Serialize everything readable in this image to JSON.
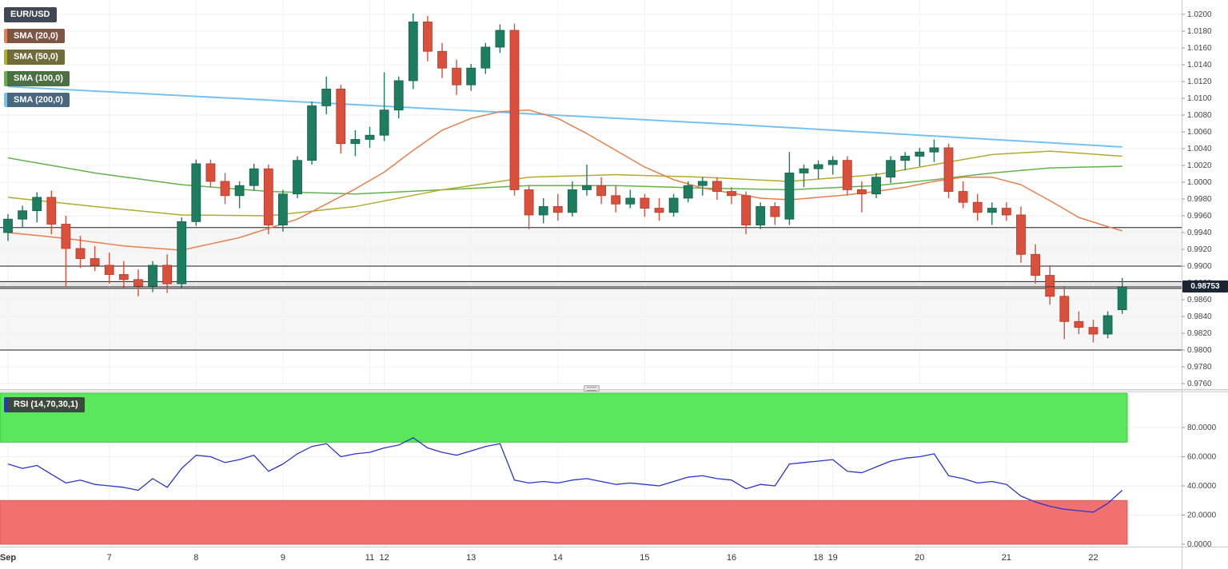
{
  "chart_data": {
    "type": "candlestick",
    "symbol": "EUR/USD",
    "legend": {
      "symbol": "EUR/USD",
      "sma20": "SMA (20,0)",
      "sma50": "SMA (50,0)",
      "sma100": "SMA (100,0)",
      "sma200": "SMA (200,0)"
    },
    "x_labels": [
      {
        "label": "Sep",
        "i": 0
      },
      {
        "label": "7",
        "i": 7
      },
      {
        "label": "8",
        "i": 13
      },
      {
        "label": "9",
        "i": 19
      },
      {
        "label": "11",
        "i": 25
      },
      {
        "label": "12",
        "i": 26
      },
      {
        "label": "13",
        "i": 32
      },
      {
        "label": "14",
        "i": 38
      },
      {
        "label": "15",
        "i": 44
      },
      {
        "label": "16",
        "i": 50
      },
      {
        "label": "18",
        "i": 56
      },
      {
        "label": "19",
        "i": 57
      },
      {
        "label": "20",
        "i": 63
      },
      {
        "label": "21",
        "i": 69
      },
      {
        "label": "22",
        "i": 75
      }
    ],
    "main": {
      "ylim": [
        0.9753,
        1.0217
      ],
      "price_ticks": [
        "1.0200",
        "1.0180",
        "1.0160",
        "1.0140",
        "1.0120",
        "1.0100",
        "1.0080",
        "1.0060",
        "1.0040",
        "1.0020",
        "1.0000",
        "0.9980",
        "0.9960",
        "0.9940",
        "0.9920",
        "0.9900",
        "0.9880",
        "0.9860",
        "0.9840",
        "0.9820",
        "0.9800",
        "0.9780",
        "0.9760"
      ],
      "levels": [
        0.9946,
        0.99,
        0.98815,
        0.98735,
        0.98
      ],
      "last_price": 0.98753,
      "last_price_label": "0.98753",
      "candles": [
        [
          0.994,
          0.9962,
          0.993,
          0.9956
        ],
        [
          0.9956,
          0.9972,
          0.9946,
          0.9966
        ],
        [
          0.9966,
          0.9988,
          0.9952,
          0.9982
        ],
        [
          0.9982,
          0.999,
          0.9938,
          0.995
        ],
        [
          0.995,
          0.996,
          0.9876,
          0.9921
        ],
        [
          0.9921,
          0.9936,
          0.9898,
          0.9909
        ],
        [
          0.9909,
          0.9924,
          0.9894,
          0.9901
        ],
        [
          0.9901,
          0.9916,
          0.9879,
          0.989
        ],
        [
          0.989,
          0.9906,
          0.9874,
          0.9884
        ],
        [
          0.9884,
          0.9896,
          0.9864,
          0.9876
        ],
        [
          0.9876,
          0.9906,
          0.9869,
          0.9901
        ],
        [
          0.9901,
          0.9914,
          0.9868,
          0.9879
        ],
        [
          0.9879,
          0.9958,
          0.9874,
          0.9953
        ],
        [
          0.9953,
          1.0027,
          0.9948,
          1.0022
        ],
        [
          1.0022,
          1.0027,
          0.9994,
          1.0001
        ],
        [
          1.0001,
          1.0011,
          0.9974,
          0.9984
        ],
        [
          0.9984,
          1.0001,
          0.9969,
          0.9996
        ],
        [
          0.9996,
          1.0022,
          0.999,
          1.0016
        ],
        [
          1.0016,
          1.0021,
          0.9938,
          0.9949
        ],
        [
          0.9949,
          0.9991,
          0.9941,
          0.9986
        ],
        [
          0.9986,
          1.0031,
          0.9981,
          1.0026
        ],
        [
          1.0026,
          1.0096,
          1.0021,
          1.0091
        ],
        [
          1.0091,
          1.0126,
          1.0081,
          1.0111
        ],
        [
          1.0111,
          1.0116,
          1.0034,
          1.0046
        ],
        [
          1.0046,
          1.0062,
          1.0031,
          1.0051
        ],
        [
          1.0051,
          1.0066,
          1.0041,
          1.0056
        ],
        [
          1.0056,
          1.0131,
          1.0049,
          1.0086
        ],
        [
          1.0086,
          1.0126,
          1.0076,
          1.0121
        ],
        [
          1.0121,
          1.0201,
          1.0111,
          1.0191
        ],
        [
          1.0191,
          1.0198,
          1.0144,
          1.0156
        ],
        [
          1.0156,
          1.0166,
          1.0124,
          1.0136
        ],
        [
          1.0136,
          1.0146,
          1.0104,
          1.0116
        ],
        [
          1.0116,
          1.0141,
          1.0109,
          1.0136
        ],
        [
          1.0136,
          1.0166,
          1.0129,
          1.0161
        ],
        [
          1.0161,
          1.0188,
          1.0154,
          1.0181
        ],
        [
          1.0181,
          1.0189,
          0.9984,
          0.9991
        ],
        [
          0.9991,
          0.9996,
          0.9944,
          0.9961
        ],
        [
          0.9961,
          0.9981,
          0.9951,
          0.9971
        ],
        [
          0.9971,
          0.9986,
          0.9954,
          0.9964
        ],
        [
          0.9964,
          1.0001,
          0.9959,
          0.9991
        ],
        [
          0.9991,
          1.0021,
          0.9984,
          0.9996
        ],
        [
          0.9996,
          1.0006,
          0.9974,
          0.9984
        ],
        [
          0.9984,
          0.9996,
          0.9964,
          0.9974
        ],
        [
          0.9974,
          0.9991,
          0.9969,
          0.9981
        ],
        [
          0.9981,
          0.9986,
          0.9959,
          0.9969
        ],
        [
          0.9969,
          0.9981,
          0.9954,
          0.9964
        ],
        [
          0.9964,
          0.9986,
          0.9959,
          0.9981
        ],
        [
          0.9981,
          1.0001,
          0.9976,
          0.9996
        ],
        [
          0.9996,
          1.0006,
          0.9984,
          1.0001
        ],
        [
          1.0001,
          1.0006,
          0.9979,
          0.9989
        ],
        [
          0.9989,
          0.9994,
          0.9974,
          0.9984
        ],
        [
          0.9984,
          0.9989,
          0.9938,
          0.9949
        ],
        [
          0.9949,
          0.9976,
          0.9944,
          0.9971
        ],
        [
          0.9971,
          0.9976,
          0.9949,
          0.9959
        ],
        [
          0.9956,
          1.0036,
          0.9949,
          1.0011
        ],
        [
          1.0011,
          1.0021,
          0.9994,
          1.0016
        ],
        [
          1.0016,
          1.0026,
          1.0004,
          1.0021
        ],
        [
          1.0021,
          1.0031,
          1.0009,
          1.0026
        ],
        [
          1.0026,
          1.0031,
          0.9984,
          0.9991
        ],
        [
          0.9991,
          1.0001,
          0.9964,
          0.9986
        ],
        [
          0.9986,
          1.0011,
          0.9981,
          1.0006
        ],
        [
          1.0006,
          1.0031,
          0.9999,
          1.0026
        ],
        [
          1.0026,
          1.0036,
          1.0014,
          1.0031
        ],
        [
          1.0031,
          1.0041,
          1.0019,
          1.0036
        ],
        [
          1.0036,
          1.0051,
          1.0024,
          1.0041
        ],
        [
          1.0041,
          1.0046,
          0.9981,
          0.9989
        ],
        [
          0.9989,
          1.0001,
          0.9969,
          0.9976
        ],
        [
          0.9976,
          0.9986,
          0.9954,
          0.9964
        ],
        [
          0.9964,
          0.9976,
          0.9949,
          0.9969
        ],
        [
          0.9969,
          0.9976,
          0.9954,
          0.9961
        ],
        [
          0.9961,
          0.9971,
          0.9904,
          0.9914
        ],
        [
          0.9914,
          0.9926,
          0.9879,
          0.9889
        ],
        [
          0.9889,
          0.9901,
          0.9854,
          0.9864
        ],
        [
          0.9864,
          0.9876,
          0.9813,
          0.9834
        ],
        [
          0.9834,
          0.9846,
          0.9819,
          0.9827
        ],
        [
          0.9827,
          0.9836,
          0.9809,
          0.9819
        ],
        [
          0.9819,
          0.9846,
          0.9814,
          0.9841
        ],
        [
          0.9848,
          0.9886,
          0.9843,
          0.98753
        ]
      ],
      "sma20": [
        [
          0,
          0.994
        ],
        [
          4,
          0.9933
        ],
        [
          8,
          0.9924
        ],
        [
          12,
          0.9919
        ],
        [
          16,
          0.9934
        ],
        [
          20,
          0.9956
        ],
        [
          24,
          0.9992
        ],
        [
          26,
          1.0012
        ],
        [
          28,
          1.0038
        ],
        [
          30,
          1.0062
        ],
        [
          32,
          1.0076
        ],
        [
          34,
          1.0084
        ],
        [
          36,
          1.0086
        ],
        [
          38,
          1.0076
        ],
        [
          40,
          1.0058
        ],
        [
          42,
          1.0038
        ],
        [
          44,
          1.0018
        ],
        [
          46,
          1.0003
        ],
        [
          48,
          0.9993
        ],
        [
          50,
          0.9987
        ],
        [
          52,
          0.9981
        ],
        [
          54,
          0.9979
        ],
        [
          56,
          0.9982
        ],
        [
          58,
          0.9985
        ],
        [
          60,
          0.9989
        ],
        [
          62,
          0.9994
        ],
        [
          64,
          1.0001
        ],
        [
          66,
          1.0006
        ],
        [
          68,
          1.0006
        ],
        [
          70,
          0.9997
        ],
        [
          72,
          0.9978
        ],
        [
          74,
          0.9958
        ],
        [
          76,
          0.9947
        ],
        [
          77,
          0.9942
        ]
      ],
      "sma50": [
        [
          0,
          0.9982
        ],
        [
          6,
          0.9971
        ],
        [
          12,
          0.9961
        ],
        [
          18,
          0.996
        ],
        [
          24,
          0.9971
        ],
        [
          30,
          0.9991
        ],
        [
          36,
          1.0006
        ],
        [
          42,
          1.0009
        ],
        [
          48,
          1.0006
        ],
        [
          54,
          1.0001
        ],
        [
          60,
          1.0009
        ],
        [
          64,
          1.0021
        ],
        [
          68,
          1.0033
        ],
        [
          72,
          1.0037
        ],
        [
          77,
          1.0031
        ]
      ],
      "sma100": [
        [
          0,
          1.0029
        ],
        [
          6,
          1.0011
        ],
        [
          12,
          0.9997
        ],
        [
          18,
          0.9989
        ],
        [
          24,
          0.9986
        ],
        [
          30,
          0.9991
        ],
        [
          36,
          0.9996
        ],
        [
          42,
          0.9996
        ],
        [
          48,
          0.9993
        ],
        [
          54,
          0.9991
        ],
        [
          60,
          0.9996
        ],
        [
          64,
          1.0003
        ],
        [
          68,
          1.0011
        ],
        [
          72,
          1.0017
        ],
        [
          77,
          1.0019
        ]
      ],
      "sma200": [
        [
          0,
          1.0114
        ],
        [
          10,
          1.0105
        ],
        [
          20,
          1.0096
        ],
        [
          30,
          1.0087
        ],
        [
          40,
          1.0078
        ],
        [
          50,
          1.0069
        ],
        [
          60,
          1.0059
        ],
        [
          68,
          1.0051
        ],
        [
          77,
          1.0042
        ]
      ]
    },
    "rsi": {
      "label": "RSI (14,70,30,1)",
      "overbought": 70,
      "oversold": 30,
      "ticks": [
        "80.0000",
        "60.0000",
        "40.0000",
        "20.0000",
        "0.0000"
      ],
      "tick_values": [
        80,
        60,
        40,
        20,
        0
      ],
      "values": [
        55,
        52,
        54,
        48,
        42,
        44,
        41,
        40,
        39,
        37,
        45,
        39,
        52,
        61,
        60,
        56,
        58,
        61,
        50,
        55,
        62,
        67,
        69,
        60,
        62,
        63,
        66,
        68,
        73,
        66,
        63,
        61,
        64,
        67,
        69,
        44,
        42,
        43,
        42,
        44,
        45,
        43,
        41,
        42,
        41,
        40,
        43,
        46,
        47,
        45,
        44,
        38,
        41,
        40,
        55,
        56,
        57,
        58,
        50,
        49,
        53,
        57,
        59,
        60,
        62,
        47,
        45,
        42,
        43,
        41,
        33,
        29,
        26,
        24,
        23,
        22,
        28,
        37
      ]
    },
    "colors": {
      "up": "#1e7d5f",
      "down": "#d9503c",
      "sma20": "#e5804d",
      "sma50": "#b3ab2f",
      "sma100": "#63b24a",
      "sma200": "#74c3ef",
      "rsi_line": "#2a35c8",
      "zone_green": "#59e75c",
      "zone_red": "#f17171",
      "badge_symbol": "#414855",
      "badge_sma20": "#7c5543",
      "badge_sma50": "#6f6b3b",
      "badge_sma100": "#4d6f44",
      "badge_sma200": "#47687e",
      "badge_rsi": "#3c4a3e",
      "price_badge": "#1c2534"
    }
  }
}
